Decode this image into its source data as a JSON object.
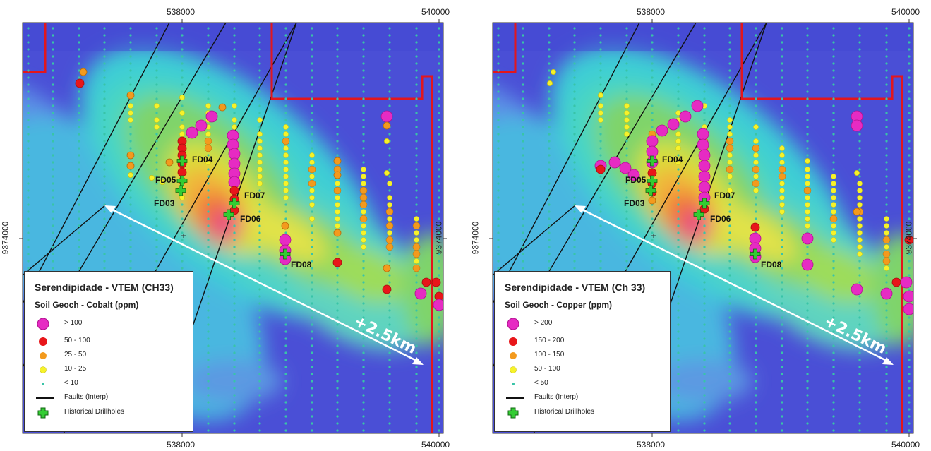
{
  "panels": [
    {
      "id": "cobalt",
      "coords": {
        "x_top_left": "538000",
        "x_top_right": "540000",
        "x_bottom_left": "538000",
        "x_bottom_right": "540000",
        "y_left": "9374000",
        "y_right": "9374000"
      },
      "legend": {
        "title": "Serendipidade - VTEM (CH33)",
        "subtitle": "Soil Geoch - Cobalt (ppm)",
        "classes": [
          {
            "label": "> 100",
            "color": "#e62bc3",
            "size": "xl"
          },
          {
            "label": "50 - 100",
            "color": "#e8161a",
            "size": "l"
          },
          {
            "label": "25 - 50",
            "color": "#f39a1d",
            "size": "m"
          },
          {
            "label": "10 - 25",
            "color": "#f6f22a",
            "size": "s"
          },
          {
            "label": "< 10",
            "color": "#39c4a8",
            "size": "xs"
          }
        ],
        "faults_label": "Faults (Interp)",
        "drillholes_label": "Historical Drillholes"
      },
      "drillholes": [
        "FD04",
        "FD05",
        "FD03",
        "FD07",
        "FD06",
        "FD08"
      ],
      "arrow_label": "+2.5km"
    },
    {
      "id": "copper",
      "coords": {
        "x_top_left": "538000",
        "x_top_right": "540000",
        "x_bottom_left": "538000",
        "x_bottom_right": "540000",
        "y_left": "9374000",
        "y_right": "9374000"
      },
      "legend": {
        "title": "Serendipidade - VTEM (Ch 33)",
        "subtitle": "Soil Geoch - Copper (ppm)",
        "classes": [
          {
            "label": "> 200",
            "color": "#e62bc3",
            "size": "xl"
          },
          {
            "label": "150 - 200",
            "color": "#e8161a",
            "size": "l"
          },
          {
            "label": "100 - 150",
            "color": "#f39a1d",
            "size": "m"
          },
          {
            "label": "50 - 100",
            "color": "#f6f22a",
            "size": "s"
          },
          {
            "label": "< 50",
            "color": "#39c4a8",
            "size": "xs"
          }
        ],
        "faults_label": "Faults (Interp)",
        "drillholes_label": "Historical Drillholes"
      },
      "drillholes": [
        "FD04",
        "FD05",
        "FD03",
        "FD07",
        "FD06",
        "FD08"
      ],
      "arrow_label": "+2.5km"
    }
  ],
  "colors": {
    "boundary": "#e3161c",
    "fault": "#111111",
    "drillhole": "#33cc33",
    "arrow": "#ffffff"
  }
}
